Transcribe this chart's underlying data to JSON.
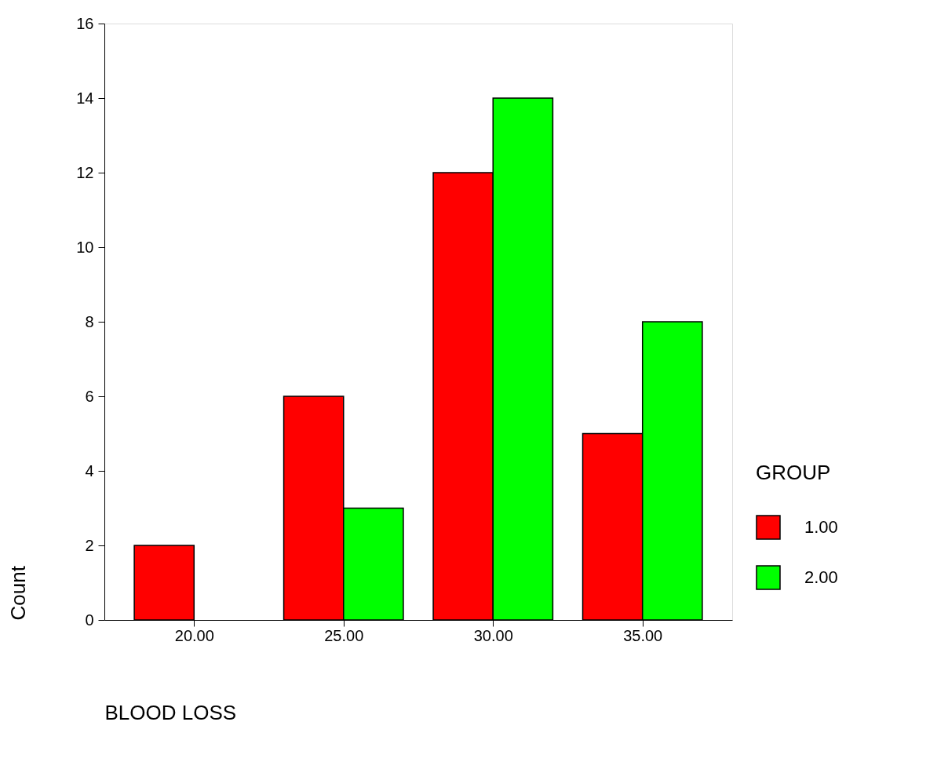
{
  "chart_data": {
    "type": "bar",
    "xlabel": "BLOOD  LOSS",
    "ylabel": "Count",
    "legend_title": "GROUP",
    "categories": [
      "20.00",
      "25.00",
      "30.00",
      "35.00"
    ],
    "series": [
      {
        "name": "1.00",
        "color": "#ff0000",
        "values": [
          2,
          6,
          12,
          5
        ]
      },
      {
        "name": "2.00",
        "color": "#00ff00",
        "values": [
          null,
          3,
          14,
          8
        ]
      }
    ],
    "ylim": [
      0,
      16
    ],
    "yticks": [
      0,
      2,
      4,
      6,
      8,
      10,
      12,
      14,
      16
    ],
    "grid": false,
    "legend": "bottom right"
  }
}
